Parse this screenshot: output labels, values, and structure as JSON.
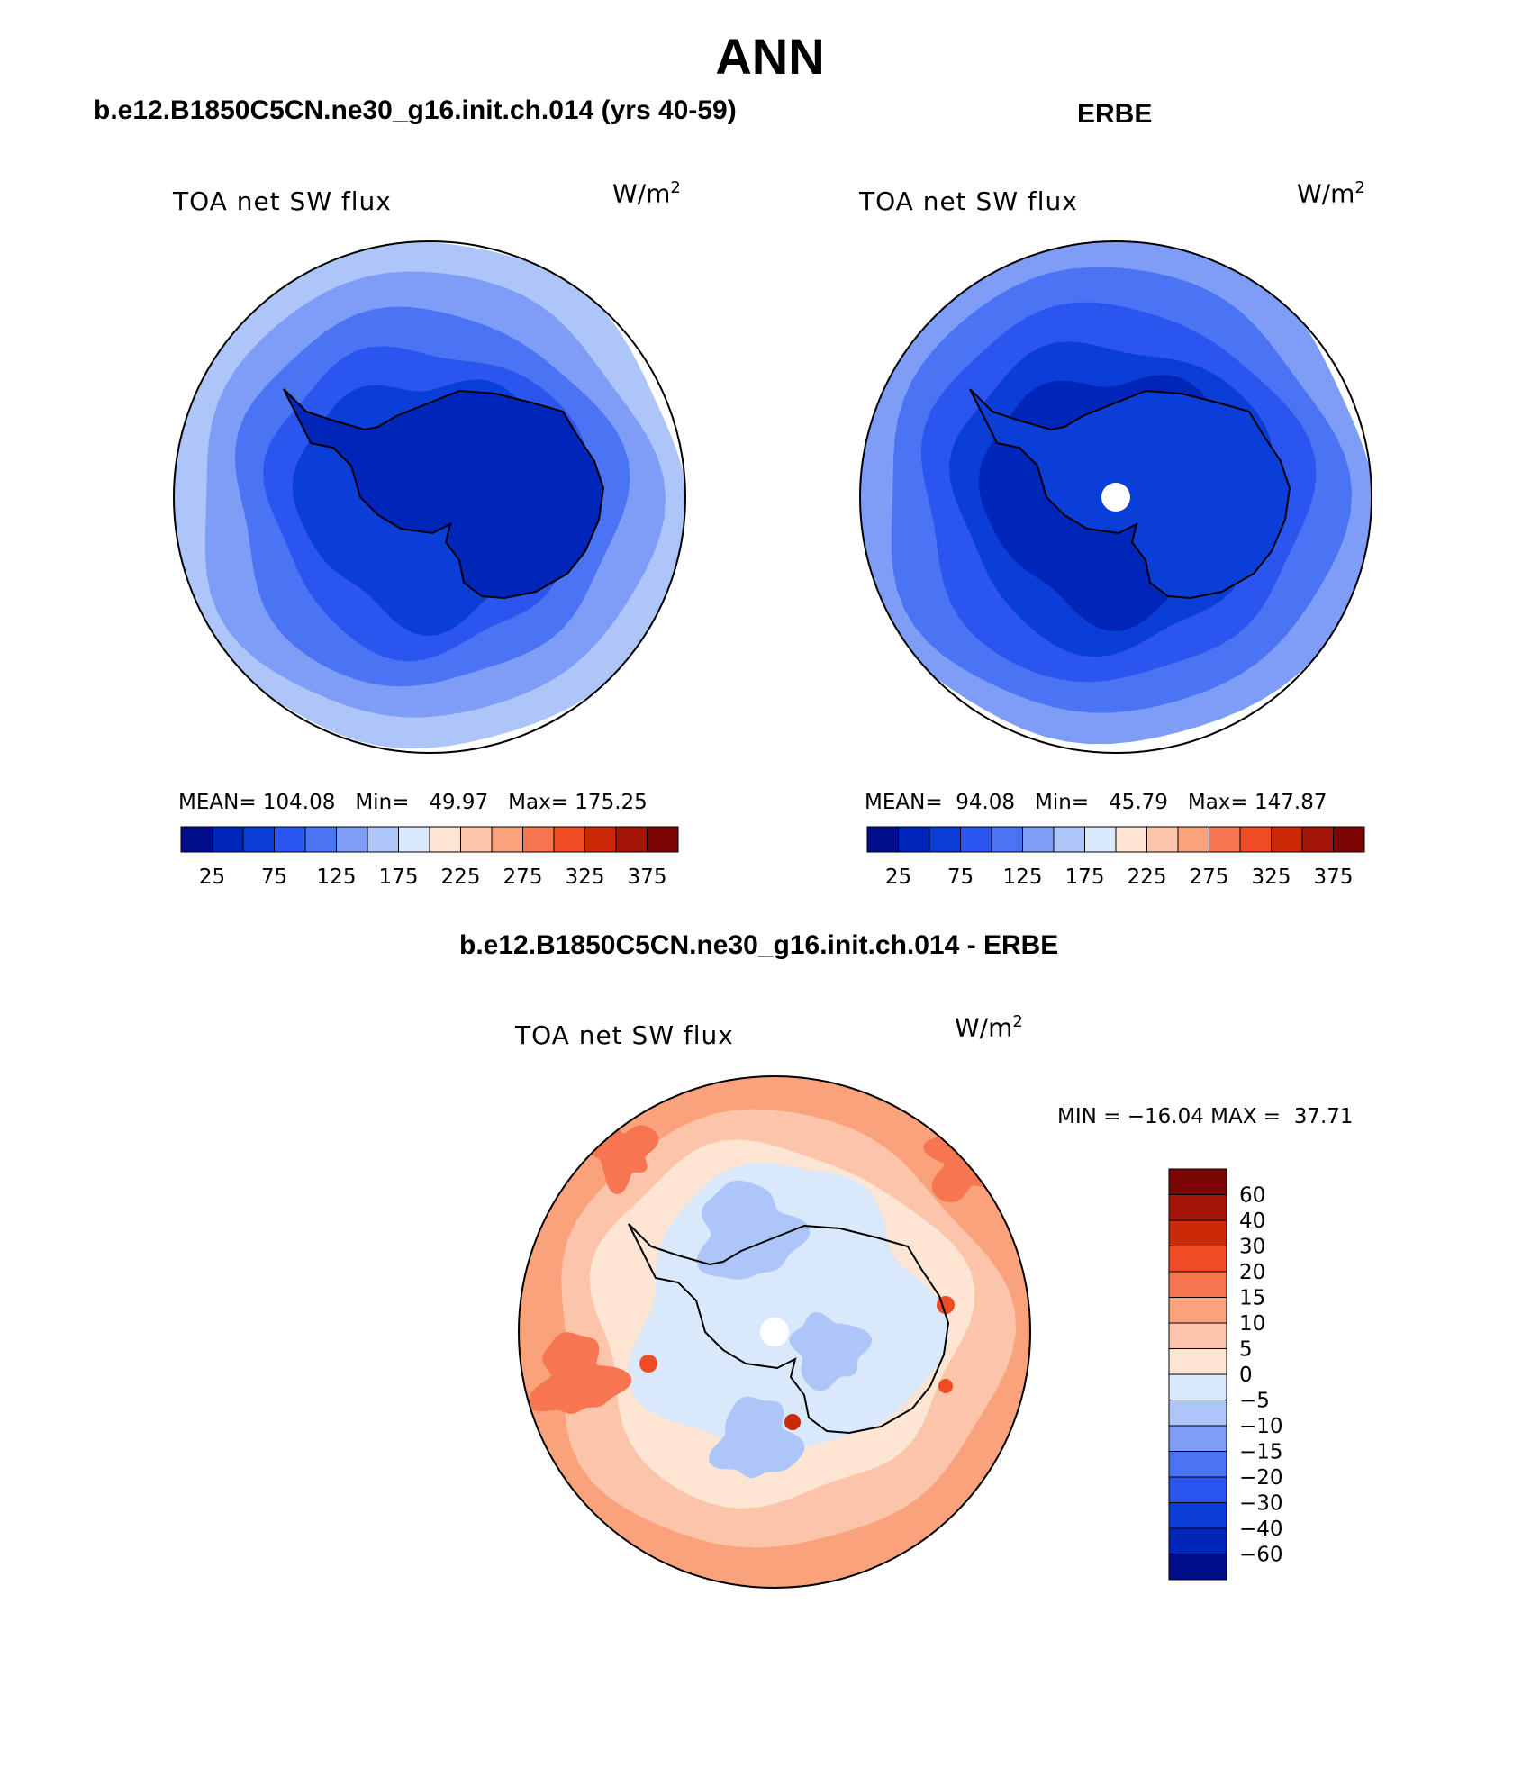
{
  "page_title": "ANN",
  "panels": [
    {
      "title": "b.e12.B1850C5CN.ne30_g16.init.ch.014 (yrs 40-59)",
      "variable": "TOA net SW flux",
      "units_base": "W/m",
      "units_exp": "2",
      "mean_label": "MEAN=",
      "mean_value": "104.08",
      "min_label": "Min=",
      "min_value": "49.97",
      "max_label": "Max=",
      "max_value": "175.25"
    },
    {
      "title": "ERBE",
      "variable": "TOA net SW flux",
      "units_base": "W/m",
      "units_exp": "2",
      "mean_label": "MEAN=",
      "mean_value": "94.08",
      "min_label": "Min=",
      "min_value": "45.79",
      "max_label": "Max=",
      "max_value": "147.87"
    },
    {
      "title": "b.e12.B1850C5CN.ne30_g16.init.ch.014 - ERBE",
      "variable": "TOA net SW flux",
      "units_base": "W/m",
      "units_exp": "2",
      "minmax_text": "MIN = −16.04 MAX =  37.71"
    }
  ],
  "chart_data": [
    {
      "type": "heatmap",
      "projection": "south polar stereographic",
      "title": "b.e12.B1850C5CN.ne30_g16.init.ch.014 (yrs 40-59)",
      "subtitle": "TOA net SW flux",
      "units": "W/m2",
      "mean": 104.08,
      "min": 49.97,
      "max": 175.25,
      "colorbar_levels": [
        25,
        50,
        75,
        100,
        125,
        150,
        175,
        200,
        225,
        250,
        275,
        300,
        325,
        350,
        375
      ],
      "colorbar_tick_labels": [
        "25",
        "75",
        "125",
        "175",
        "225",
        "275",
        "325",
        "375"
      ],
      "colorbar_colors": [
        "#000e8c",
        "#0025b9",
        "#0a3ed7",
        "#2b55ef",
        "#4b74f4",
        "#7d9df6",
        "#aec5fa",
        "#dae8fb",
        "#fde5d4",
        "#fcc5a9",
        "#faa27c",
        "#f77652",
        "#ef4b24",
        "#cb2907",
        "#a31506",
        "#7a0505"
      ],
      "rings_from_pole": [
        {
          "value_band": "50-75",
          "color": "#0a3ed7"
        },
        {
          "value_band": "75-100",
          "color": "#2b55ef"
        },
        {
          "value_band": "100-125",
          "color": "#4b74f4"
        },
        {
          "value_band": "125-150",
          "color": "#7d9df6"
        },
        {
          "value_band": "150-175",
          "color": "#aec5fa"
        }
      ]
    },
    {
      "type": "heatmap",
      "projection": "south polar stereographic",
      "title": "ERBE",
      "subtitle": "TOA net SW flux",
      "units": "W/m2",
      "mean": 94.08,
      "min": 45.79,
      "max": 147.87,
      "colorbar_levels": [
        25,
        50,
        75,
        100,
        125,
        150,
        175,
        200,
        225,
        250,
        275,
        300,
        325,
        350,
        375
      ],
      "colorbar_tick_labels": [
        "25",
        "75",
        "125",
        "175",
        "225",
        "275",
        "325",
        "375"
      ],
      "colorbar_colors": [
        "#000e8c",
        "#0025b9",
        "#0a3ed7",
        "#2b55ef",
        "#4b74f4",
        "#7d9df6",
        "#aec5fa",
        "#dae8fb",
        "#fde5d4",
        "#fcc5a9",
        "#faa27c",
        "#f77652",
        "#ef4b24",
        "#cb2907",
        "#a31506",
        "#7a0505"
      ],
      "rings_from_pole": [
        {
          "value_band": "25-50",
          "color": "#0025b9"
        },
        {
          "value_band": "50-75",
          "color": "#0a3ed7"
        },
        {
          "value_band": "75-100",
          "color": "#2b55ef"
        },
        {
          "value_band": "100-125",
          "color": "#4b74f4"
        },
        {
          "value_band": "125-150",
          "color": "#7d9df6"
        }
      ]
    },
    {
      "type": "heatmap",
      "projection": "south polar stereographic",
      "title": "b.e12.B1850C5CN.ne30_g16.init.ch.014 - ERBE",
      "subtitle": "TOA net SW flux",
      "units": "W/m2",
      "min": -16.04,
      "max": 37.71,
      "colorbar_levels": [
        60,
        40,
        30,
        20,
        15,
        10,
        5,
        0,
        -5,
        -10,
        -15,
        -20,
        -30,
        -40,
        -60
      ],
      "colorbar_tick_labels": [
        "60",
        "40",
        "30",
        "20",
        "15",
        "10",
        "5",
        "0",
        "−5",
        "−10",
        "−15",
        "−20",
        "−30",
        "−40",
        "−60"
      ],
      "colorbar_colors": [
        "#7a0505",
        "#a31506",
        "#cb2907",
        "#ef4b24",
        "#f77652",
        "#faa27c",
        "#fcc5a9",
        "#fde5d4",
        "#dae8fb",
        "#aec5fa",
        "#7d9df6",
        "#4b74f4",
        "#2b55ef",
        "#0a3ed7",
        "#0025b9",
        "#000e8c"
      ]
    }
  ]
}
